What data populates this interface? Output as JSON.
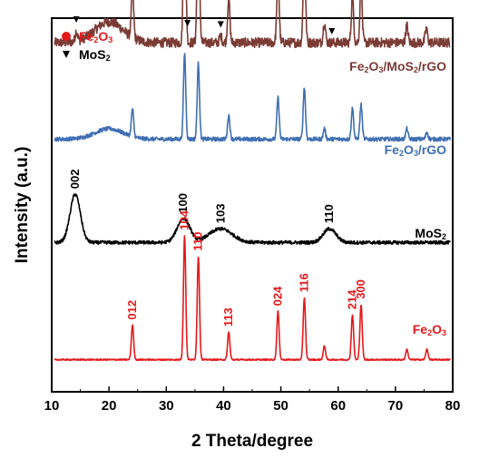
{
  "chart_data": {
    "type": "line",
    "title": "",
    "xlabel": "2 Theta/degree",
    "ylabel": "Intensity (a.u.)",
    "xlim": [
      10,
      80
    ],
    "xticks": [
      10,
      20,
      30,
      40,
      50,
      60,
      70,
      80
    ],
    "yticks_shown": false,
    "grid": false,
    "legend": {
      "placement": "top-left",
      "entries": [
        {
          "marker": "circle",
          "label": "Fe2O3",
          "color": "#e31a1c"
        },
        {
          "marker": "triangle-down",
          "label": "MoS2",
          "color": "#000000"
        }
      ]
    },
    "series": [
      {
        "name": "Fe2O3/MoS2/rGO",
        "color": "#7b3b35",
        "baseline_level": 1.0,
        "noise": 0.014,
        "humps": [
          {
            "center": 20,
            "width": 3.5,
            "height": 0.06
          }
        ],
        "peaks": [
          {
            "x": 14.3,
            "h": 0.03
          },
          {
            "x": 24.1,
            "h": 0.14
          },
          {
            "x": 33.2,
            "h": 0.53
          },
          {
            "x": 35.6,
            "h": 0.44
          },
          {
            "x": 39.5,
            "h": 0.02
          },
          {
            "x": 40.9,
            "h": 0.13
          },
          {
            "x": 49.5,
            "h": 0.2
          },
          {
            "x": 54.1,
            "h": 0.27
          },
          {
            "x": 57.6,
            "h": 0.06
          },
          {
            "x": 62.5,
            "h": 0.13
          },
          {
            "x": 64.0,
            "h": 0.16
          },
          {
            "x": 72.0,
            "h": 0.05
          },
          {
            "x": 75.4,
            "h": 0.04
          }
        ],
        "markers": [
          {
            "type": "circle",
            "x": 24.1
          },
          {
            "type": "circle",
            "x": 33.2
          },
          {
            "type": "circle",
            "x": 35.6
          },
          {
            "type": "circle",
            "x": 40.9
          },
          {
            "type": "circle",
            "x": 49.5
          },
          {
            "type": "circle",
            "x": 54.1
          },
          {
            "type": "circle",
            "x": 62.5
          },
          {
            "type": "circle",
            "x": 64.0
          },
          {
            "type": "triangle",
            "x": 14.3
          },
          {
            "type": "triangle",
            "x": 33.7
          },
          {
            "type": "triangle",
            "x": 39.5
          },
          {
            "type": "triangle",
            "x": 58.9
          }
        ]
      },
      {
        "name": "Fe2O3/rGO",
        "color": "#3f6fb2",
        "baseline_level": 0.72,
        "noise": 0.006,
        "humps": [
          {
            "center": 20,
            "width": 3.5,
            "height": 0.03
          }
        ],
        "peaks": [
          {
            "x": 24.1,
            "h": 0.08
          },
          {
            "x": 33.2,
            "h": 0.25
          },
          {
            "x": 35.6,
            "h": 0.22
          },
          {
            "x": 40.9,
            "h": 0.07
          },
          {
            "x": 49.5,
            "h": 0.12
          },
          {
            "x": 54.1,
            "h": 0.15
          },
          {
            "x": 57.6,
            "h": 0.03
          },
          {
            "x": 62.5,
            "h": 0.09
          },
          {
            "x": 64.0,
            "h": 0.1
          },
          {
            "x": 72.0,
            "h": 0.03
          },
          {
            "x": 75.5,
            "h": 0.02
          }
        ]
      },
      {
        "name": "MoS2",
        "color": "#000000",
        "baseline_level": 0.42,
        "noise": 0.005,
        "humps": [],
        "peaks": [
          {
            "x": 14.1,
            "h": 0.14,
            "w": 0.9
          },
          {
            "x": 33.0,
            "h": 0.07,
            "w": 1.1
          },
          {
            "x": 39.5,
            "h": 0.04,
            "w": 2.0
          },
          {
            "x": 58.5,
            "h": 0.04,
            "w": 1.1
          }
        ],
        "peak_labels": [
          {
            "x": 14.1,
            "text": "002"
          },
          {
            "x": 33.0,
            "text": "100"
          },
          {
            "x": 39.5,
            "text": "103"
          },
          {
            "x": 58.5,
            "text": "110"
          }
        ]
      },
      {
        "name": "Fe2O3",
        "color": "#e31a1c",
        "baseline_level": 0.08,
        "noise": 0.002,
        "humps": [],
        "peaks": [
          {
            "x": 24.1,
            "h": 0.1
          },
          {
            "x": 33.2,
            "h": 0.36
          },
          {
            "x": 35.6,
            "h": 0.3
          },
          {
            "x": 40.9,
            "h": 0.08
          },
          {
            "x": 49.5,
            "h": 0.14
          },
          {
            "x": 54.1,
            "h": 0.18
          },
          {
            "x": 57.6,
            "h": 0.04
          },
          {
            "x": 62.5,
            "h": 0.13
          },
          {
            "x": 64.0,
            "h": 0.16
          },
          {
            "x": 72.0,
            "h": 0.03
          },
          {
            "x": 75.5,
            "h": 0.03
          }
        ],
        "peak_labels": [
          {
            "x": 24.1,
            "text": "012"
          },
          {
            "x": 33.2,
            "text": "104"
          },
          {
            "x": 35.6,
            "text": "110"
          },
          {
            "x": 40.9,
            "text": "113"
          },
          {
            "x": 49.5,
            "text": "024"
          },
          {
            "x": 54.1,
            "text": "116"
          },
          {
            "x": 62.5,
            "text": "214"
          },
          {
            "x": 64.0,
            "text": "300"
          }
        ]
      }
    ]
  }
}
